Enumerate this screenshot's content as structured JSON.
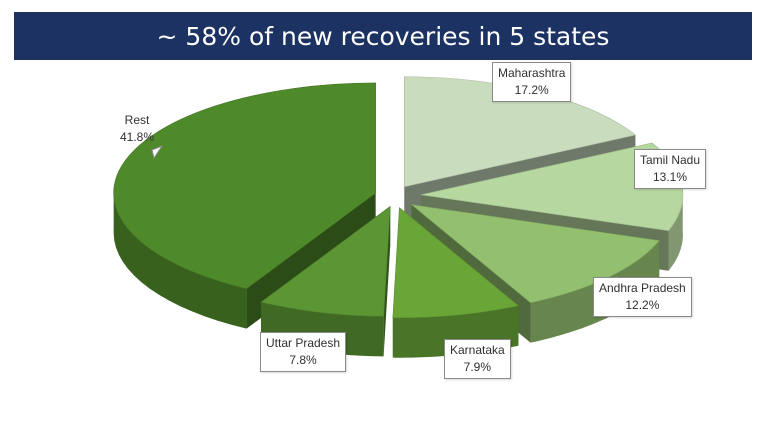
{
  "title": "~ 58% of new recoveries in 5 states",
  "chart_data": {
    "type": "pie",
    "title": "~ 58% of new recoveries in 5 states",
    "slices": [
      {
        "name": "Maharashtra",
        "label": "17.2%",
        "value": 17.2,
        "color": "#c9dcbe"
      },
      {
        "name": "Tamil Nadu",
        "label": "13.1%",
        "value": 13.1,
        "color": "#b7d7a1"
      },
      {
        "name": "Andhra Pradesh",
        "label": "12.2%",
        "value": 12.2,
        "color": "#93c06f"
      },
      {
        "name": "Karnataka",
        "label": "7.9%",
        "value": 7.9,
        "color": "#6aa637"
      },
      {
        "name": "Uttar Pradesh",
        "label": "7.8%",
        "value": 7.8,
        "color": "#5c9634"
      },
      {
        "name": "Rest",
        "label": "41.8%",
        "value": 41.8,
        "color": "#4f8a2a"
      }
    ],
    "style": "3d-exploded",
    "legend": "none"
  }
}
